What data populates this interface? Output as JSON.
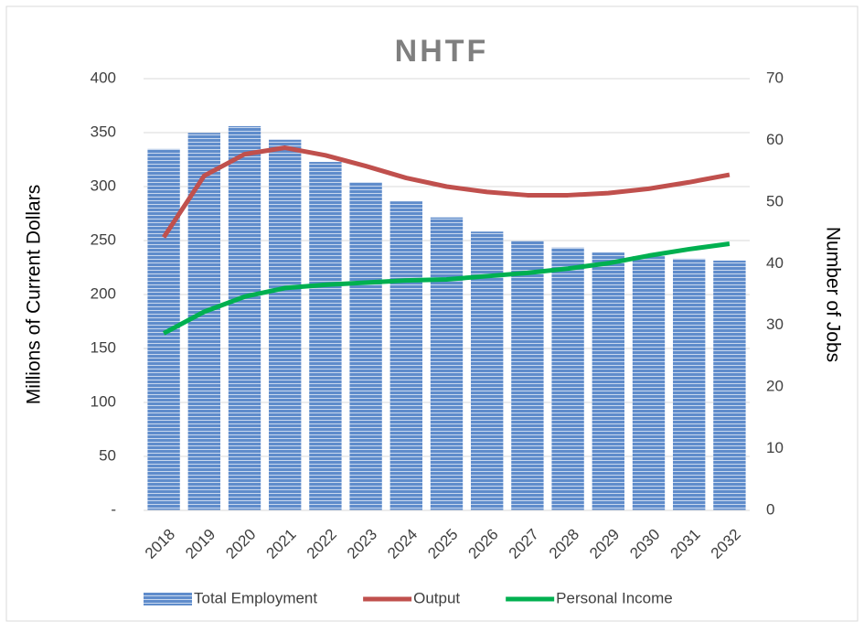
{
  "chart_data": {
    "type": "combo",
    "title": "NHTF",
    "y_label": "Millions of Current Dollars",
    "y2_label": "Number of Jobs",
    "categories": [
      "2018",
      "2019",
      "2020",
      "2021",
      "2022",
      "2023",
      "2024",
      "2025",
      "2026",
      "2027",
      "2028",
      "2029",
      "2030",
      "2031",
      "2032"
    ],
    "series": [
      {
        "name": "Total Employment",
        "type": "bar",
        "axis": "y2",
        "color": "#5f8ccb",
        "values": [
          58.6,
          61.2,
          62.3,
          60.1,
          56.5,
          53.2,
          50.1,
          47.5,
          45.2,
          43.7,
          42.6,
          41.8,
          41.2,
          40.8,
          40.5
        ]
      },
      {
        "name": "Output",
        "type": "line",
        "axis": "y",
        "color": "#c0504d",
        "values": [
          253,
          310,
          330,
          336,
          329,
          319,
          308,
          300,
          295,
          292,
          292,
          294,
          298,
          304,
          311
        ]
      },
      {
        "name": "Personal Income",
        "type": "line",
        "axis": "y",
        "color": "#00b050",
        "values": [
          164,
          184,
          198,
          206,
          209,
          211,
          213,
          214,
          217,
          220,
          224,
          229,
          236,
          242,
          247
        ]
      }
    ],
    "ylim": [
      0,
      400
    ],
    "yticks": [
      {
        "value": 0,
        "label": "-"
      },
      50,
      100,
      150,
      200,
      250,
      300,
      350,
      400
    ],
    "y2lim": [
      0,
      70
    ],
    "y2ticks": [
      0,
      10,
      20,
      30,
      40,
      50,
      60,
      70
    ],
    "grid": true,
    "legend": "bottom"
  }
}
